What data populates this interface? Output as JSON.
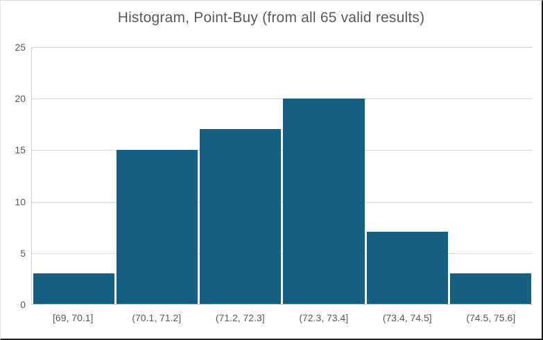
{
  "title": "Histogram, Point-Buy (from all 65 valid results)",
  "colors": {
    "bar": "#156082",
    "gridline": "#d9d9d9",
    "axis_line": "#c4c4c4",
    "text": "#595959",
    "background": "#ffffff",
    "frame_dark_edge": "#1f1f1f",
    "frame_light_edge": "#d6d6d6"
  },
  "chart_data": {
    "type": "bar",
    "subtype": "histogram",
    "title": "Histogram, Point-Buy (from all 65 valid results)",
    "categories": [
      "[69, 70.1]",
      "(70.1, 71.2]",
      "(71.2, 72.3]",
      "(72.3, 73.4]",
      "(73.4, 74.5]",
      "(74.5, 75.6]"
    ],
    "values": [
      3,
      15,
      17,
      20,
      7,
      3
    ],
    "xlabel": "",
    "ylabel": "",
    "ylim": [
      0,
      25
    ],
    "yticks": [
      0,
      5,
      10,
      15,
      20,
      25
    ],
    "grid": true,
    "legend": false,
    "total_count": 65
  }
}
